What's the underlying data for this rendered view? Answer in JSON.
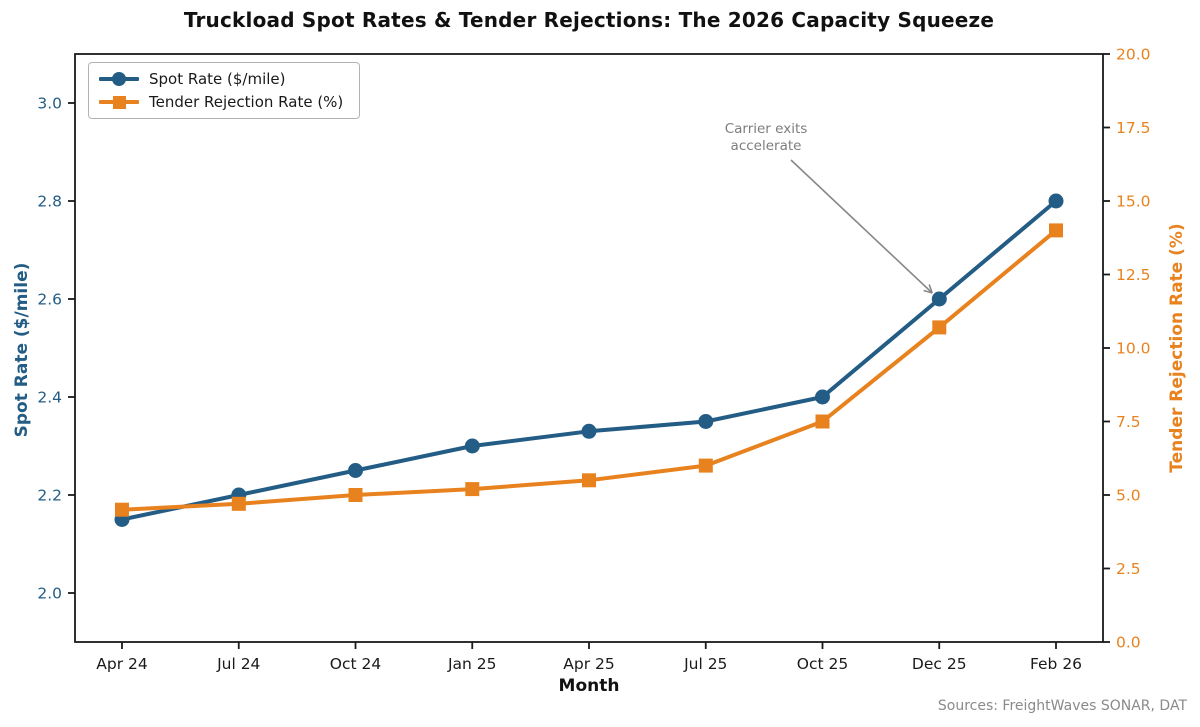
{
  "title": "Truckload Spot Rates & Tender Rejections: The 2026 Capacity Squeeze",
  "source_note": "Sources: FreightWaves SONAR, DAT",
  "source_note_color": "#8a8a8a",
  "chart_data": {
    "type": "line",
    "categories": [
      "Apr 24",
      "Jul 24",
      "Oct 24",
      "Jan 25",
      "Apr 25",
      "Jul 25",
      "Oct 25",
      "Dec 25",
      "Feb 26"
    ],
    "series": [
      {
        "name": "Spot Rate ($/mile)",
        "axis": "left",
        "marker": "circle",
        "color": "#235d85",
        "values": [
          2.15,
          2.2,
          2.25,
          2.3,
          2.33,
          2.35,
          2.4,
          2.6,
          2.8
        ]
      },
      {
        "name": "Tender Rejection Rate (%)",
        "axis": "right",
        "marker": "square",
        "color": "#e8821e",
        "values": [
          4.5,
          4.7,
          5.0,
          5.2,
          5.5,
          6.0,
          7.5,
          10.7,
          14.0
        ]
      }
    ],
    "xlabel": "Month",
    "ylabel_left": "Spot Rate ($/mile)",
    "ylabel_right": "Tender Rejection Rate (%)",
    "ylim_left": [
      1.9,
      3.1
    ],
    "ylim_right": [
      0,
      20
    ],
    "yticks_left": [
      2.0,
      2.2,
      2.4,
      2.6,
      2.8,
      3.0
    ],
    "yticks_right": [
      0.0,
      2.5,
      5.0,
      7.5,
      10.0,
      12.5,
      15.0,
      17.5,
      20.0
    ],
    "grid": false,
    "legend_position": "upper-left",
    "annotation": {
      "lines": [
        "Carrier exits",
        "accelerate"
      ],
      "color": "#7d7d7d",
      "arrow_color": "#888888",
      "target_series": 0,
      "target_index": 7
    }
  }
}
